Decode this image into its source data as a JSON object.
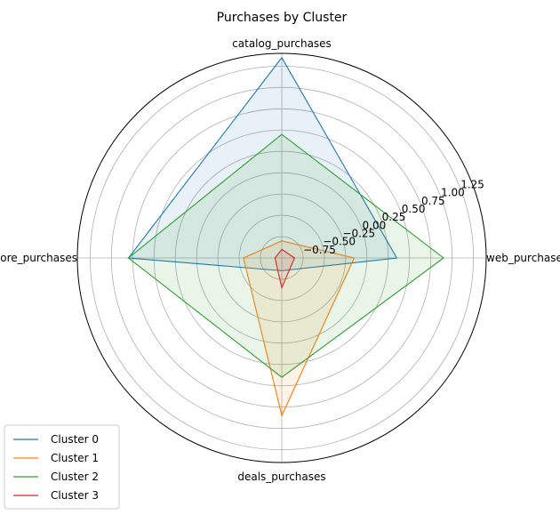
{
  "chart_data": {
    "type": "radar",
    "title": "Purchases by Cluster",
    "axes": [
      "web_purchases",
      "catalog_purchases",
      "store_purchases",
      "deals_purchases"
    ],
    "rlim": [
      -1.0,
      1.4
    ],
    "rticks": [
      -0.75,
      -0.5,
      -0.25,
      0.0,
      0.25,
      0.5,
      0.75,
      1.0,
      1.25
    ],
    "rtick_labels": [
      "−0.75",
      "−0.50",
      "−0.25",
      "0.00",
      "0.25",
      "0.50",
      "0.75",
      "1.00",
      "1.25"
    ],
    "grid": true,
    "legend_position": "lower-left",
    "series": [
      {
        "name": "Cluster 0",
        "color": "#1f77b4",
        "values": [
          0.35,
          1.35,
          0.8,
          -0.85
        ]
      },
      {
        "name": "Cluster 1",
        "color": "#ff7f0e",
        "values": [
          -0.15,
          -0.8,
          -0.55,
          0.85
        ]
      },
      {
        "name": "Cluster 2",
        "color": "#2ca02c",
        "values": [
          0.9,
          0.45,
          0.8,
          0.4
        ]
      },
      {
        "name": "Cluster 3",
        "color": "#d62728",
        "values": [
          -0.85,
          -0.9,
          -0.92,
          -0.65
        ]
      }
    ]
  }
}
